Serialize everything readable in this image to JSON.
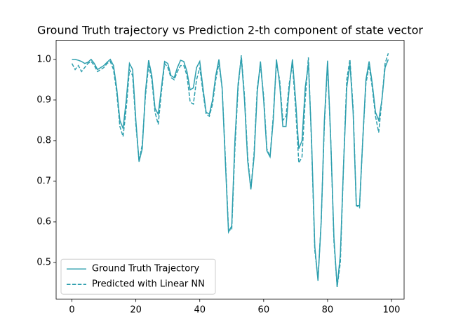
{
  "chart_data": {
    "type": "line",
    "title": "Ground Truth trajectory vs Prediction 2-th component of state vector",
    "x": [
      0,
      1,
      2,
      3,
      4,
      5,
      6,
      7,
      8,
      9,
      10,
      11,
      12,
      13,
      14,
      15,
      16,
      17,
      18,
      19,
      20,
      21,
      22,
      23,
      24,
      25,
      26,
      27,
      28,
      29,
      30,
      31,
      32,
      33,
      34,
      35,
      36,
      37,
      38,
      39,
      40,
      41,
      42,
      43,
      44,
      45,
      46,
      47,
      48,
      49,
      50,
      51,
      52,
      53,
      54,
      55,
      56,
      57,
      58,
      59,
      60,
      61,
      62,
      63,
      64,
      65,
      66,
      67,
      68,
      69,
      70,
      71,
      72,
      73,
      74,
      75,
      76,
      77,
      78,
      79,
      80,
      81,
      82,
      83,
      84,
      85,
      86,
      87,
      88,
      89,
      90,
      91,
      92,
      93,
      94,
      95,
      96,
      97,
      98,
      99
    ],
    "series": [
      {
        "name": "Ground Truth Trajectory",
        "color": "#2e9fae",
        "dash": false,
        "values": [
          1.0,
          1.0,
          0.998,
          0.995,
          0.99,
          0.993,
          1.0,
          0.99,
          0.975,
          0.98,
          0.985,
          0.993,
          1.0,
          0.985,
          0.93,
          0.85,
          0.83,
          0.9,
          0.99,
          0.975,
          0.85,
          0.748,
          0.78,
          0.92,
          0.998,
          0.96,
          0.88,
          0.865,
          0.93,
          0.995,
          0.99,
          0.96,
          0.955,
          0.98,
          0.998,
          0.995,
          0.97,
          0.925,
          0.93,
          0.98,
          0.995,
          0.93,
          0.87,
          0.865,
          0.9,
          0.96,
          1.0,
          0.93,
          0.75,
          0.575,
          0.59,
          0.8,
          0.94,
          1.005,
          0.9,
          0.75,
          0.68,
          0.76,
          0.92,
          0.995,
          0.9,
          0.775,
          0.76,
          0.85,
          1.0,
          0.94,
          0.835,
          0.835,
          0.93,
          1.0,
          0.9,
          0.78,
          0.8,
          0.93,
          0.99,
          0.8,
          0.54,
          0.455,
          0.6,
          0.85,
          0.997,
          0.8,
          0.56,
          0.44,
          0.52,
          0.74,
          0.93,
          0.99,
          0.87,
          0.64,
          0.64,
          0.8,
          0.95,
          0.995,
          0.94,
          0.87,
          0.85,
          0.9,
          0.98,
          1.0
        ]
      },
      {
        "name": "Predicted with Linear NN",
        "color": "#2e9fae",
        "dash": true,
        "values": [
          0.99,
          0.975,
          0.985,
          0.97,
          0.98,
          0.99,
          0.995,
          0.985,
          0.97,
          0.975,
          0.98,
          0.99,
          0.995,
          0.975,
          0.92,
          0.835,
          0.81,
          0.88,
          0.975,
          0.96,
          0.84,
          0.75,
          0.79,
          0.91,
          0.985,
          0.95,
          0.87,
          0.84,
          0.92,
          0.99,
          0.98,
          0.955,
          0.95,
          0.97,
          0.985,
          0.985,
          0.96,
          0.895,
          0.89,
          0.95,
          0.98,
          0.92,
          0.865,
          0.86,
          0.89,
          0.95,
          0.99,
          0.93,
          0.76,
          0.58,
          0.58,
          0.78,
          0.93,
          1.01,
          0.91,
          0.76,
          0.68,
          0.77,
          0.93,
          0.985,
          0.91,
          0.78,
          0.76,
          0.86,
          0.99,
          0.95,
          0.85,
          0.86,
          0.94,
          0.99,
          0.88,
          0.745,
          0.76,
          0.9,
          1.005,
          0.79,
          0.53,
          0.46,
          0.6,
          0.84,
          0.99,
          0.8,
          0.55,
          0.44,
          0.5,
          0.74,
          0.95,
          1.0,
          0.88,
          0.64,
          0.635,
          0.8,
          0.94,
          0.985,
          0.93,
          0.86,
          0.82,
          0.9,
          0.99,
          1.015
        ]
      }
    ],
    "xlim": [
      -4.95,
      103.95
    ],
    "ylim": [
      0.41,
      1.047
    ],
    "xticks": [
      0,
      20,
      40,
      60,
      80,
      100
    ],
    "yticks": [
      0.5,
      0.6,
      0.7,
      0.8,
      0.9,
      {
        "value": 1,
        "label": "1.0"
      }
    ],
    "grid": false,
    "legend": "lower left"
  }
}
